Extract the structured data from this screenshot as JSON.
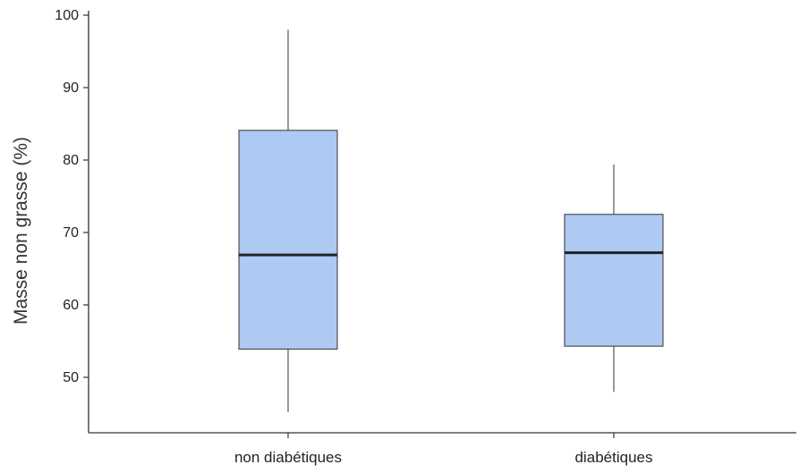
{
  "chart_data": {
    "type": "box",
    "title": "",
    "xlabel": "",
    "ylabel": "Masse non grasse (%)",
    "ylim": [
      43,
      100
    ],
    "y_ticks": [
      50,
      60,
      70,
      80,
      90,
      100
    ],
    "grid": false,
    "legend": "none",
    "box_color": "#aec9f2",
    "categories": [
      "non diabétiques",
      "diabétiques"
    ],
    "boxes": [
      {
        "category": "non diabétiques",
        "whisker_low": 45.2,
        "q1": 53.9,
        "median": 66.9,
        "q3": 84.1,
        "whisker_high": 98.0
      },
      {
        "category": "diabétiques",
        "whisker_low": 48.0,
        "q1": 54.3,
        "median": 67.2,
        "q3": 72.5,
        "whisker_high": 79.4
      }
    ]
  }
}
